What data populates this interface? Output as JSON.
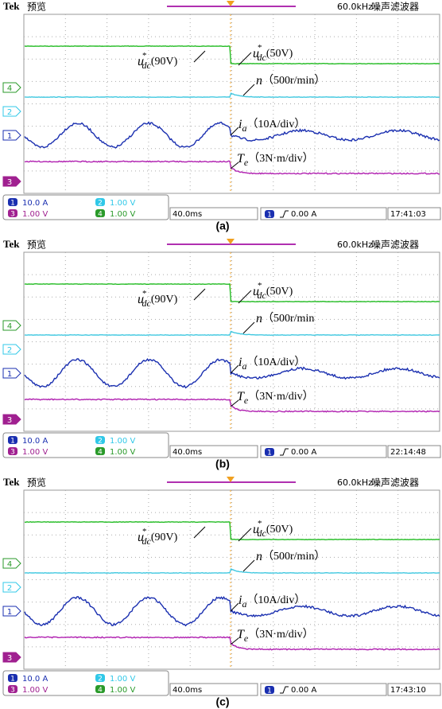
{
  "panels": [
    {
      "header": {
        "brand": "Tek",
        "mode": "预览",
        "filter": "60.0kHz",
        "filter_label": "噪声滤波器"
      },
      "channel_markers": [
        "4",
        "2",
        "1",
        "3"
      ],
      "annotations": [
        {
          "symbol": "u",
          "sup": "*",
          "sub": "dc",
          "text": "(90V)"
        },
        {
          "symbol": "u",
          "sup": "*",
          "sub": "dc",
          "text": "(50V)"
        },
        {
          "symbol": "n",
          "text": "（500r/min）"
        },
        {
          "symbol": "i",
          "sub": "a",
          "text": "（10A/div）"
        },
        {
          "symbol": "T",
          "sub": "e",
          "text": "（3N·m/div）"
        }
      ],
      "status": {
        "channels": [
          {
            "ch": "1",
            "scale": "10.0 A"
          },
          {
            "ch": "2",
            "scale": "1.00 V"
          },
          {
            "ch": "3",
            "scale": "1.00 V"
          },
          {
            "ch": "4",
            "scale": "1.00 V"
          }
        ],
        "timebase": "40.0ms",
        "trigger_channel": "1",
        "trigger": "0.00 A",
        "time": "17:41:03"
      },
      "caption": "(a)"
    },
    {
      "header": {
        "brand": "Tek",
        "mode": "预览",
        "filter": "60.0kHz",
        "filter_label": "噪声滤波器"
      },
      "channel_markers": [
        "4",
        "2",
        "1",
        "3"
      ],
      "annotations": [
        {
          "symbol": "u",
          "sup": "*",
          "sub": "dc",
          "text": "(90V)"
        },
        {
          "symbol": "u",
          "sup": "*",
          "sub": "dc",
          "text": "(50V)"
        },
        {
          "symbol": "n",
          "text": "（500r/min"
        },
        {
          "symbol": "i",
          "sub": "a",
          "text": "（10A/div）"
        },
        {
          "symbol": "T",
          "sub": "e",
          "text": "（3N·m/div）"
        }
      ],
      "status": {
        "channels": [
          {
            "ch": "1",
            "scale": "10.0 A"
          },
          {
            "ch": "2",
            "scale": "1.00 V"
          },
          {
            "ch": "3",
            "scale": "1.00 V"
          },
          {
            "ch": "4",
            "scale": "1.00 V"
          }
        ],
        "timebase": "40.0ms",
        "trigger_channel": "1",
        "trigger": "0.00 A",
        "time": "22:14:48"
      },
      "caption": "(b)"
    },
    {
      "header": {
        "brand": "Tek",
        "mode": "预览",
        "filter": "60.0kHz",
        "filter_label": "噪声滤波器"
      },
      "channel_markers": [
        "4",
        "2",
        "1",
        "3"
      ],
      "annotations": [
        {
          "symbol": "u",
          "sup": "*",
          "sub": "dc",
          "text": "(90V)"
        },
        {
          "symbol": "u",
          "sup": "*",
          "sub": "dc",
          "text": "(50V)"
        },
        {
          "symbol": "n",
          "text": "（500r/min）"
        },
        {
          "symbol": "i",
          "sub": "a",
          "text": "（10A/div）"
        },
        {
          "symbol": "T",
          "sub": "e",
          "text": "（3N·m/div）"
        }
      ],
      "status": {
        "channels": [
          {
            "ch": "1",
            "scale": "10.0 A"
          },
          {
            "ch": "2",
            "scale": "1.00 V"
          },
          {
            "ch": "3",
            "scale": "1.00 V"
          },
          {
            "ch": "4",
            "scale": "1.00 V"
          }
        ],
        "timebase": "40.0ms",
        "trigger_channel": "1",
        "trigger": "0.00 A",
        "time": "17:43:10"
      },
      "caption": "(c)"
    }
  ]
}
